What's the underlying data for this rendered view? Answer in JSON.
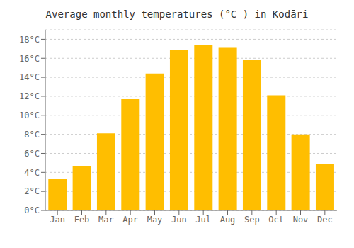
{
  "chart_data": {
    "type": "bar",
    "title": "Average monthly temperatures (°C ) in Kodāri",
    "categories": [
      "Jan",
      "Feb",
      "Mar",
      "Apr",
      "May",
      "Jun",
      "Jul",
      "Aug",
      "Sep",
      "Oct",
      "Nov",
      "Dec"
    ],
    "values": [
      3.3,
      4.7,
      8.1,
      11.7,
      14.4,
      16.9,
      17.4,
      17.1,
      15.8,
      12.1,
      8.0,
      4.9
    ],
    "color": "#FFBE00",
    "ylim": [
      0,
      19
    ],
    "yticks": [
      {
        "value": 0,
        "label": "0°C"
      },
      {
        "value": 2,
        "label": "2°C"
      },
      {
        "value": 4,
        "label": "4°C"
      },
      {
        "value": 6,
        "label": "6°C"
      },
      {
        "value": 8,
        "label": "8°C"
      },
      {
        "value": 10,
        "label": "10°C"
      },
      {
        "value": 12,
        "label": "12°C"
      },
      {
        "value": 14,
        "label": "14°C"
      },
      {
        "value": 16,
        "label": "16°C"
      },
      {
        "value": 18,
        "label": "18°C"
      }
    ],
    "grid": true
  }
}
